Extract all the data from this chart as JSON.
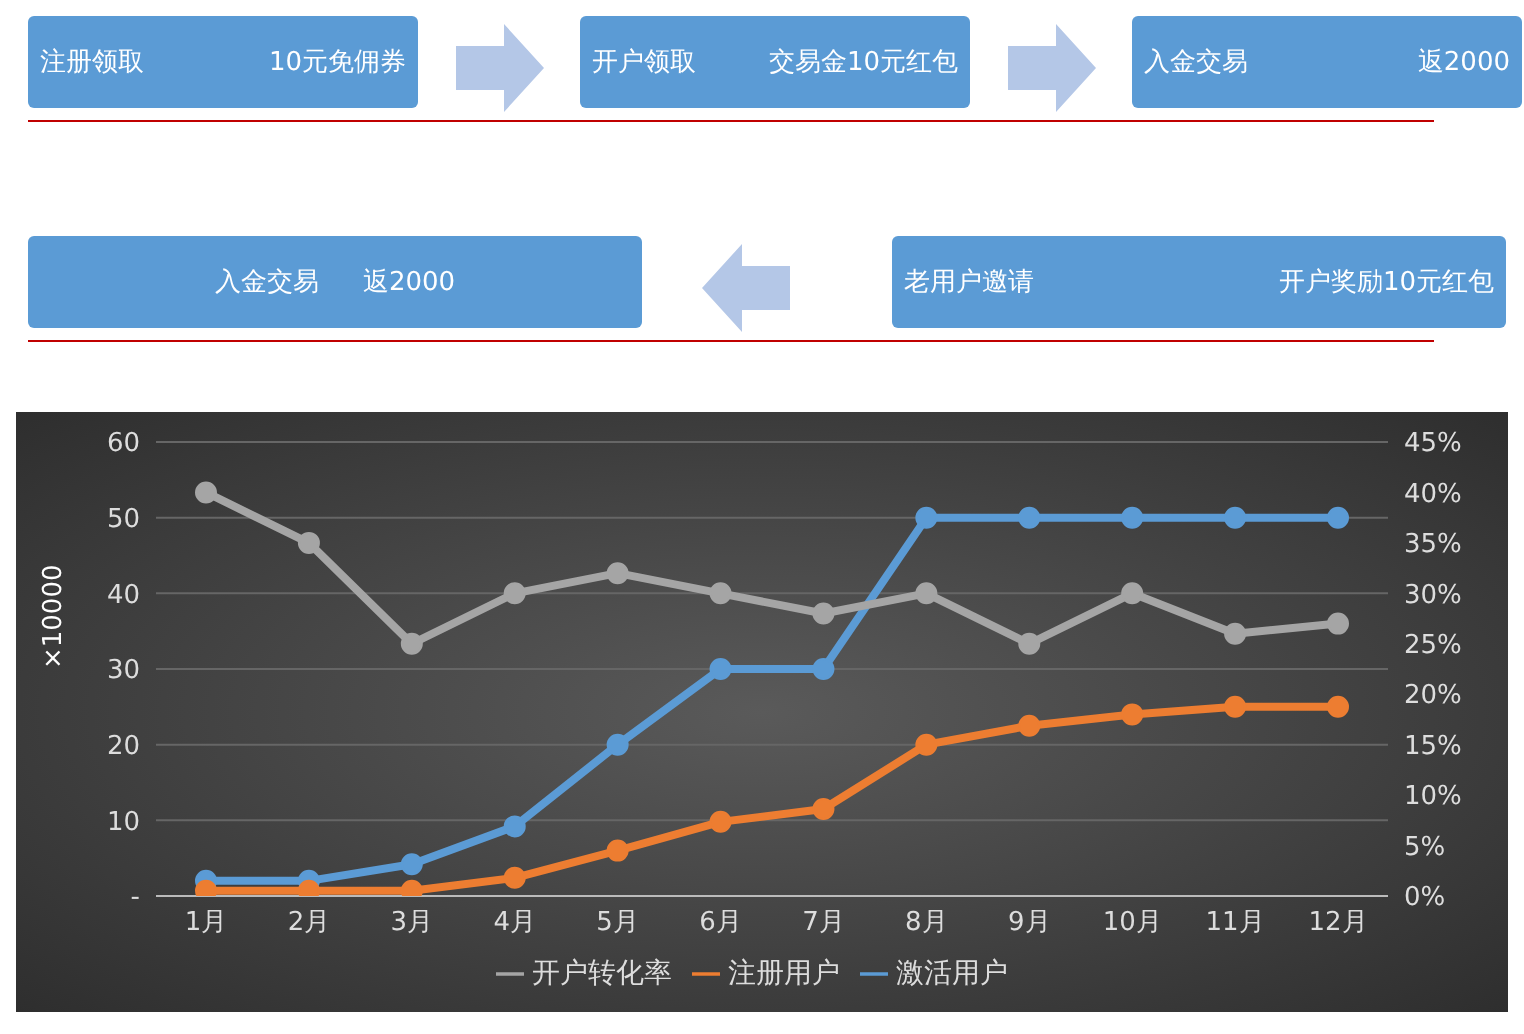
{
  "chart_data": [
    {
      "type": "other",
      "annotations": [
        "注册领取",
        "10元免佣券",
        "开户领取",
        "交易金10元红包",
        "入金交易",
        "返2000",
        "老用户邀请",
        "开户奖励10元红包",
        "入金交易",
        "返2000"
      ]
    },
    {
      "type": "line",
      "categories": [
        "1月",
        "2月",
        "3月",
        "4月",
        "5月",
        "6月",
        "7月",
        "8月",
        "9月",
        "10月",
        "11月",
        "12月"
      ],
      "ylabel": "×10000",
      "ylim": [
        0,
        60
      ],
      "yticks": [
        {
          "value": 0,
          "label": "-"
        },
        10,
        20,
        30,
        40,
        50,
        60
      ],
      "y2lim": [
        0,
        45
      ],
      "y2ticks": [
        {
          "value": 0,
          "label": "0%"
        },
        {
          "value": 5,
          "label": "5%"
        },
        {
          "value": 10,
          "label": "10%"
        },
        {
          "value": 15,
          "label": "15%"
        },
        {
          "value": 20,
          "label": "20%"
        },
        {
          "value": 25,
          "label": "25%"
        },
        {
          "value": 30,
          "label": "30%"
        },
        {
          "value": 35,
          "label": "35%"
        },
        {
          "value": 40,
          "label": "40%"
        },
        {
          "value": 45,
          "label": "45%"
        }
      ],
      "grid": "y",
      "legend": "bottom",
      "marker": "circle",
      "line_style": "solid",
      "series": [
        {
          "name": "激活用户",
          "color": "#5b9bd5",
          "values": [
            2,
            2,
            4.2,
            9.2,
            20,
            30,
            30,
            50,
            50,
            50,
            50,
            50
          ]
        },
        {
          "name": "注册用户",
          "color": "#ed7d31",
          "values": [
            0.7,
            0.7,
            0.7,
            2.4,
            6,
            9.8,
            11.5,
            20,
            22.5,
            24,
            25,
            25
          ]
        },
        {
          "name": "开户转化率",
          "color": "#a5a5a5",
          "axis": "y2",
          "values": [
            40,
            35,
            25,
            30,
            32,
            30,
            28,
            30,
            25,
            30,
            26,
            27
          ]
        }
      ]
    }
  ]
}
